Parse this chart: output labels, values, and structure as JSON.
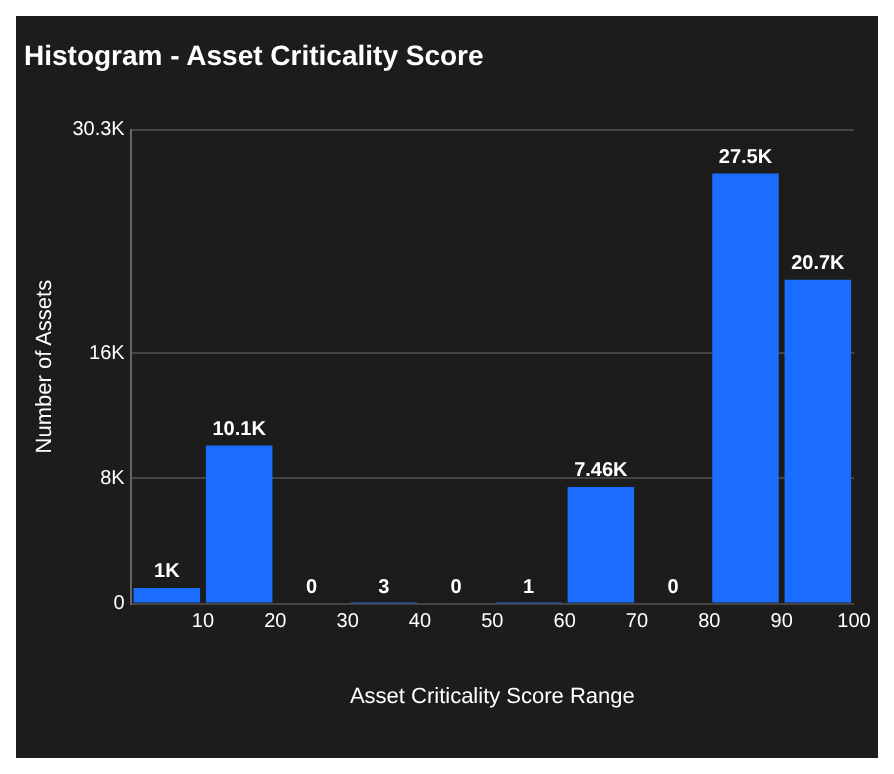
{
  "chart_data": {
    "type": "histogram",
    "title": "Histogram - Asset Criticality Score",
    "xlabel": "Asset Criticality Score Range",
    "ylabel": "Number of Assets",
    "bins": [
      0,
      10,
      20,
      30,
      40,
      50,
      60,
      70,
      80,
      90,
      100
    ],
    "values": [
      1000,
      10100,
      0,
      3,
      0,
      1,
      7460,
      0,
      27500,
      20700
    ],
    "value_labels": [
      "1K",
      "10.1K",
      "0",
      "3",
      "0",
      "1",
      "7.46K",
      "0",
      "27.5K",
      "20.7K"
    ],
    "color": "#1a6dff",
    "xlim": [
      0,
      100
    ],
    "xticks": [
      10,
      20,
      30,
      40,
      50,
      60,
      70,
      80,
      90,
      100
    ],
    "ylim": [
      0,
      30300
    ],
    "yticks": [
      0,
      {
        "value": 8000,
        "label": "8K"
      },
      {
        "value": 16000,
        "label": "16K"
      },
      {
        "value": 30300,
        "label": "30.3K"
      }
    ],
    "grid": "y",
    "legend": false
  }
}
